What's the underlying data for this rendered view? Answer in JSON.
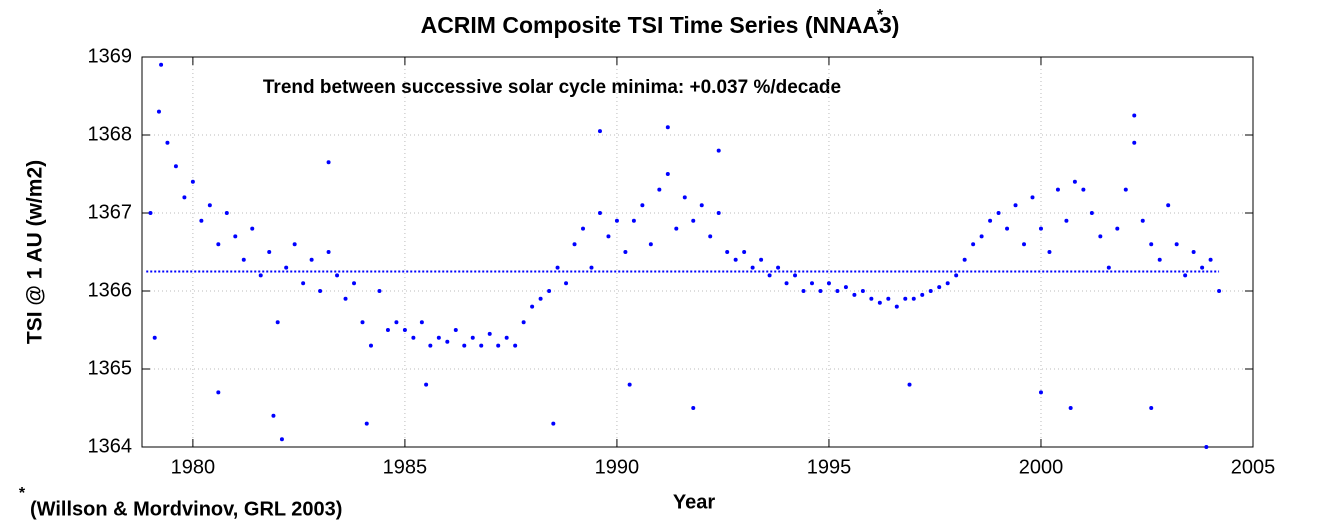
{
  "chart_data": {
    "type": "scatter",
    "title": "ACRIM Composite TSI Time Series (NNAA3)",
    "title_mark": "*",
    "annotation": "Trend between successive solar cycle minima: +0.037 %/decade",
    "footnote_mark": "*",
    "footnote": "(Willson & Mordvinov, GRL 2003)",
    "x_label": "Year",
    "y_label": "TSI @ 1 AU (w/m2)",
    "color": "#0000ff",
    "xlim": [
      1978.8,
      2005
    ],
    "ylim": [
      1364,
      1369
    ],
    "xticks": [
      1980,
      1985,
      1990,
      1995,
      2000,
      2005
    ],
    "yticks": [
      1364,
      1365,
      1366,
      1367,
      1368,
      1369
    ],
    "grid": true,
    "x": [
      1979.0,
      1979.2,
      1979.4,
      1979.6,
      1979.8,
      1980.0,
      1980.2,
      1980.4,
      1980.6,
      1980.8,
      1981.0,
      1981.2,
      1981.4,
      1981.6,
      1981.8,
      1982.0,
      1982.2,
      1982.4,
      1982.6,
      1982.8,
      1983.0,
      1983.2,
      1983.4,
      1983.6,
      1983.8,
      1984.0,
      1984.2,
      1984.4,
      1984.6,
      1984.8,
      1985.0,
      1985.2,
      1985.4,
      1985.6,
      1985.8,
      1986.0,
      1986.2,
      1986.4,
      1986.6,
      1986.8,
      1987.0,
      1987.2,
      1987.4,
      1987.6,
      1987.8,
      1988.0,
      1988.2,
      1988.4,
      1988.6,
      1988.8,
      1989.0,
      1989.2,
      1989.4,
      1989.6,
      1989.8,
      1990.0,
      1990.2,
      1990.4,
      1990.6,
      1990.8,
      1991.0,
      1991.2,
      1991.4,
      1991.6,
      1991.8,
      1992.0,
      1992.2,
      1992.4,
      1992.6,
      1992.8,
      1993.0,
      1993.2,
      1993.4,
      1993.6,
      1993.8,
      1994.0,
      1994.2,
      1994.4,
      1994.6,
      1994.8,
      1995.0,
      1995.2,
      1995.4,
      1995.6,
      1995.8,
      1996.0,
      1996.2,
      1996.4,
      1996.6,
      1996.8,
      1997.0,
      1997.2,
      1997.4,
      1997.6,
      1997.8,
      1998.0,
      1998.2,
      1998.4,
      1998.6,
      1998.8,
      1999.0,
      1999.2,
      1999.4,
      1999.6,
      1999.8,
      2000.0,
      2000.2,
      2000.4,
      2000.6,
      2000.8,
      2001.0,
      2001.2,
      2001.4,
      2001.6,
      2001.8,
      2002.0,
      2002.2,
      2002.4,
      2002.6,
      2002.8,
      2003.0,
      2003.2,
      2003.4,
      2003.6,
      2003.8,
      2004.0,
      2004.2,
      1979.1,
      1979.25,
      1980.6,
      1981.9,
      1982.1,
      1983.2,
      1984.1,
      1985.5,
      1988.5,
      1989.6,
      1990.3,
      1991.2,
      1991.8,
      1992.4,
      1996.9,
      2000.0,
      2000.7,
      2002.2,
      2002.6,
      2003.9
    ],
    "values": [
      1367.0,
      1368.3,
      1367.9,
      1367.6,
      1367.2,
      1367.4,
      1366.9,
      1367.1,
      1366.6,
      1367.0,
      1366.7,
      1366.4,
      1366.8,
      1366.2,
      1366.5,
      1365.6,
      1366.3,
      1366.6,
      1366.1,
      1366.4,
      1366.0,
      1366.5,
      1366.2,
      1365.9,
      1366.1,
      1365.6,
      1365.3,
      1366.0,
      1365.5,
      1365.6,
      1365.5,
      1365.4,
      1365.6,
      1365.3,
      1365.4,
      1365.35,
      1365.5,
      1365.3,
      1365.4,
      1365.3,
      1365.45,
      1365.3,
      1365.4,
      1365.3,
      1365.6,
      1365.8,
      1365.9,
      1366.0,
      1366.3,
      1366.1,
      1366.6,
      1366.8,
      1366.3,
      1367.0,
      1366.7,
      1366.9,
      1366.5,
      1366.9,
      1367.1,
      1366.6,
      1367.3,
      1367.5,
      1366.8,
      1367.2,
      1366.9,
      1367.1,
      1366.7,
      1367.0,
      1366.5,
      1366.4,
      1366.5,
      1366.3,
      1366.4,
      1366.2,
      1366.3,
      1366.1,
      1366.2,
      1366.0,
      1366.1,
      1366.0,
      1366.1,
      1366.0,
      1366.05,
      1365.95,
      1366.0,
      1365.9,
      1365.85,
      1365.9,
      1365.8,
      1365.9,
      1365.9,
      1365.95,
      1366.0,
      1366.05,
      1366.1,
      1366.2,
      1366.4,
      1366.6,
      1366.7,
      1366.9,
      1367.0,
      1366.8,
      1367.1,
      1366.6,
      1367.2,
      1366.8,
      1366.5,
      1367.3,
      1366.9,
      1367.4,
      1367.3,
      1367.0,
      1366.7,
      1366.3,
      1366.8,
      1367.3,
      1367.9,
      1366.9,
      1366.6,
      1366.4,
      1367.1,
      1366.6,
      1366.2,
      1366.5,
      1366.3,
      1366.4,
      1366.0,
      1365.4,
      1368.9,
      1364.7,
      1364.4,
      1364.1,
      1367.65,
      1364.3,
      1364.8,
      1364.3,
      1368.05,
      1364.8,
      1368.1,
      1364.5,
      1367.8,
      1364.8,
      1364.7,
      1364.5,
      1368.25,
      1364.5,
      1364.0
    ],
    "trend_line": {
      "x": [
        1978.9,
        2004.2
      ],
      "values": [
        1366.25,
        1366.25
      ]
    }
  }
}
